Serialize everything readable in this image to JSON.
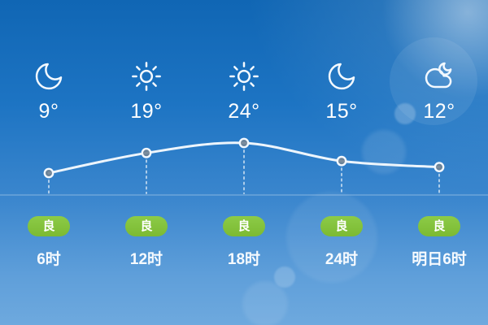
{
  "widget": {
    "name": "hourly-weather-forecast"
  },
  "columns": [
    {
      "icon": "moon",
      "condition": "clear-night",
      "temp": "9°",
      "aqi": "良",
      "time": "6时"
    },
    {
      "icon": "sun",
      "condition": "sunny",
      "temp": "19°",
      "aqi": "良",
      "time": "12时"
    },
    {
      "icon": "sun",
      "condition": "sunny",
      "temp": "24°",
      "aqi": "良",
      "time": "18时"
    },
    {
      "icon": "moon",
      "condition": "clear-night",
      "temp": "15°",
      "aqi": "良",
      "time": "24时"
    },
    {
      "icon": "cloud-moon",
      "condition": "cloudy-night",
      "temp": "12°",
      "aqi": "良",
      "time": "明日6时"
    }
  ],
  "chart_data": {
    "type": "line",
    "categories": [
      "6时",
      "12时",
      "18时",
      "24时",
      "明日6时"
    ],
    "series": [
      {
        "name": "temperature",
        "values": [
          9,
          19,
          24,
          15,
          12
        ]
      }
    ],
    "unit": "°",
    "title": "",
    "xlabel": "",
    "ylabel": "",
    "legend": "none",
    "grid": "baseline-only",
    "markers": "hollow circles with dotted droplines to baseline"
  },
  "colors": {
    "bg_top": "#1066b4",
    "bg_bottom": "#6ea9de",
    "aqi_good_green": "#84c33c",
    "line": "#edf5fc",
    "text": "#ffffff"
  },
  "icons": {
    "moon": "moon-icon",
    "sun": "sun-icon",
    "cloud_moon": "cloud-moon-icon"
  }
}
